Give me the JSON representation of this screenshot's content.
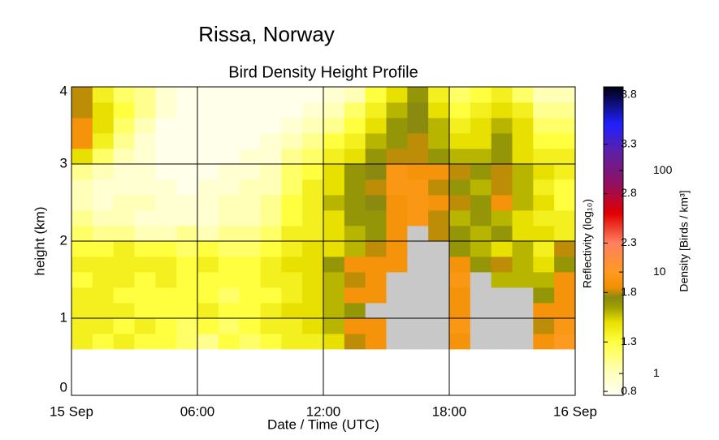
{
  "chart_data": {
    "type": "heatmap",
    "title": "Rissa, Norway",
    "subtitle": "Bird Density Height Profile",
    "xlabel": "Date / Time (UTC)",
    "ylabel": "height (km)",
    "colorbar_label": "Reflectivity (log₁₀)",
    "colorbar_label2": "Density [Birds / km³]",
    "xlim": [
      0,
      24
    ],
    "xticks": [
      {
        "value": 0,
        "label": "15 Sep"
      },
      {
        "value": 6,
        "label": "06:00"
      },
      {
        "value": 12,
        "label": "12:00"
      },
      {
        "value": 18,
        "label": "18:00"
      },
      {
        "value": 24,
        "label": "16 Sep"
      }
    ],
    "ylim": [
      0,
      4
    ],
    "yticks": [
      0,
      1,
      2,
      3,
      4
    ],
    "grid": true,
    "x_edges": [
      0,
      1,
      2,
      3,
      4,
      5,
      6,
      7,
      8,
      9,
      10,
      11,
      12,
      13,
      14,
      15,
      16,
      17,
      18,
      19,
      20,
      21,
      22,
      23,
      24
    ],
    "y_edges": [
      0.6,
      0.8,
      1.0,
      1.2,
      1.4,
      1.6,
      1.8,
      2.0,
      2.2,
      2.4,
      2.6,
      2.8,
      3.0,
      3.2,
      3.4,
      3.6,
      3.8,
      4.0
    ],
    "z": [
      [
        1.4,
        1.3,
        1.4,
        1.3,
        1.3,
        1.2,
        1.1,
        1.3,
        1.2,
        1.3,
        1.4,
        1.4,
        1.5,
        1.8,
        1.9,
        null,
        null,
        null,
        1.9,
        null,
        null,
        null,
        1.9,
        2.0
      ],
      [
        1.4,
        1.4,
        1.3,
        1.4,
        1.3,
        1.2,
        1.3,
        1.2,
        1.3,
        1.4,
        1.4,
        1.5,
        1.6,
        1.9,
        1.9,
        null,
        null,
        null,
        1.95,
        null,
        null,
        null,
        1.8,
        1.95
      ],
      [
        1.4,
        1.4,
        1.4,
        1.3,
        1.3,
        1.3,
        1.4,
        1.3,
        1.3,
        1.4,
        1.5,
        1.5,
        1.6,
        1.7,
        null,
        null,
        null,
        null,
        1.9,
        null,
        null,
        null,
        1.9,
        1.9
      ],
      [
        1.4,
        1.4,
        1.3,
        1.3,
        1.3,
        1.3,
        1.3,
        1.2,
        1.3,
        1.3,
        1.4,
        1.5,
        1.6,
        1.9,
        1.9,
        null,
        null,
        null,
        1.9,
        null,
        null,
        null,
        1.7,
        1.9
      ],
      [
        1.3,
        1.4,
        1.4,
        1.3,
        1.4,
        1.3,
        1.3,
        1.3,
        1.3,
        1.4,
        1.4,
        1.5,
        1.6,
        1.8,
        1.9,
        null,
        null,
        null,
        1.95,
        null,
        1.6,
        1.6,
        1.6,
        1.9
      ],
      [
        1.4,
        1.4,
        1.4,
        1.4,
        1.4,
        1.3,
        1.4,
        1.3,
        1.3,
        1.4,
        1.5,
        1.5,
        1.7,
        1.9,
        1.9,
        1.9,
        null,
        null,
        1.9,
        1.7,
        1.8,
        1.6,
        1.5,
        1.7
      ],
      [
        1.3,
        1.3,
        1.4,
        1.3,
        1.3,
        1.2,
        1.3,
        1.2,
        1.2,
        1.3,
        1.4,
        1.5,
        1.5,
        1.6,
        1.8,
        1.9,
        null,
        null,
        1.7,
        1.6,
        1.5,
        1.6,
        1.4,
        1.8
      ],
      [
        1.2,
        1.1,
        1.1,
        1.0,
        1.0,
        1.1,
        1.0,
        1.1,
        1.1,
        1.2,
        1.4,
        1.4,
        1.5,
        1.6,
        1.7,
        1.9,
        null,
        1.8,
        1.7,
        1.6,
        1.7,
        1.5,
        1.5,
        1.4
      ],
      [
        1.1,
        1.0,
        1.0,
        0.9,
        0.9,
        0.9,
        0.9,
        1.0,
        1.0,
        1.1,
        1.3,
        1.4,
        1.5,
        1.7,
        1.7,
        1.9,
        1.95,
        1.8,
        1.6,
        1.7,
        1.6,
        1.5,
        1.4,
        1.4
      ],
      [
        1.0,
        0.9,
        1.0,
        1.0,
        0.9,
        0.9,
        0.9,
        1.0,
        1.0,
        1.1,
        1.3,
        1.4,
        1.6,
        1.7,
        1.75,
        1.9,
        1.95,
        1.9,
        1.8,
        1.7,
        1.9,
        1.6,
        1.5,
        1.3
      ],
      [
        1.0,
        0.9,
        0.9,
        0.9,
        0.9,
        0.8,
        0.9,
        0.9,
        1.0,
        1.0,
        1.2,
        1.4,
        1.5,
        1.7,
        1.8,
        1.95,
        1.95,
        1.8,
        1.7,
        1.6,
        1.8,
        1.6,
        1.4,
        1.3
      ],
      [
        1.1,
        1.0,
        0.9,
        0.9,
        0.8,
        0.8,
        0.8,
        0.9,
        0.9,
        1.0,
        1.2,
        1.3,
        1.5,
        1.7,
        1.75,
        1.95,
        1.9,
        1.9,
        1.8,
        1.7,
        1.8,
        1.6,
        1.5,
        1.4
      ],
      [
        1.5,
        1.2,
        1.0,
        0.9,
        0.8,
        0.8,
        0.8,
        0.8,
        0.9,
        0.9,
        1.1,
        1.2,
        1.4,
        1.5,
        1.7,
        1.8,
        1.8,
        1.7,
        1.6,
        1.6,
        1.7,
        1.5,
        1.4,
        1.4
      ],
      [
        1.9,
        1.4,
        1.1,
        0.9,
        0.8,
        0.8,
        0.8,
        0.8,
        0.8,
        0.9,
        1.0,
        1.1,
        1.3,
        1.4,
        1.6,
        1.7,
        1.8,
        1.6,
        1.5,
        1.5,
        1.7,
        1.5,
        1.3,
        1.3
      ],
      [
        1.9,
        1.5,
        1.2,
        1.0,
        0.8,
        0.8,
        0.8,
        0.8,
        0.8,
        0.8,
        0.9,
        1.0,
        1.1,
        1.3,
        1.5,
        1.7,
        1.75,
        1.6,
        1.4,
        1.5,
        1.6,
        1.5,
        1.2,
        1.2
      ],
      [
        1.8,
        1.5,
        1.3,
        1.1,
        0.9,
        0.8,
        0.8,
        0.8,
        0.8,
        0.8,
        0.8,
        0.9,
        1.0,
        1.2,
        1.4,
        1.6,
        1.75,
        1.5,
        1.3,
        1.4,
        1.5,
        1.4,
        1.1,
        1.1
      ],
      [
        1.8,
        1.4,
        1.2,
        1.1,
        0.9,
        0.8,
        0.8,
        0.8,
        0.8,
        0.8,
        0.8,
        0.8,
        0.9,
        1.0,
        1.3,
        1.5,
        1.7,
        1.4,
        1.2,
        1.3,
        1.4,
        1.2,
        1.0,
        1.0
      ]
    ],
    "null_color": "#c8c8c8",
    "clim": [
      0.76,
      3.88
    ],
    "cticks": [
      0.8,
      1.3,
      1.8,
      2.3,
      2.8,
      3.3,
      3.8
    ],
    "density_lim": [
      0.61,
      667
    ],
    "density_ticks": [
      1,
      10,
      100
    ],
    "log_scale_density": true,
    "colormap": [
      {
        "value": 0.76,
        "color": "#fffff4"
      },
      {
        "value": 1.0,
        "color": "#ffffb8"
      },
      {
        "value": 1.3,
        "color": "#ffff40"
      },
      {
        "value": 1.5,
        "color": "#e8e000"
      },
      {
        "value": 1.65,
        "color": "#a0a000"
      },
      {
        "value": 1.75,
        "color": "#8a8a10"
      },
      {
        "value": 1.85,
        "color": "#f09000"
      },
      {
        "value": 2.0,
        "color": "#ff9a20"
      },
      {
        "value": 2.3,
        "color": "#ff8060"
      },
      {
        "value": 2.6,
        "color": "#e00000"
      },
      {
        "value": 2.9,
        "color": "#901060"
      },
      {
        "value": 3.2,
        "color": "#6020a0"
      },
      {
        "value": 3.5,
        "color": "#2020ff"
      },
      {
        "value": 3.88,
        "color": "#000010"
      }
    ]
  }
}
